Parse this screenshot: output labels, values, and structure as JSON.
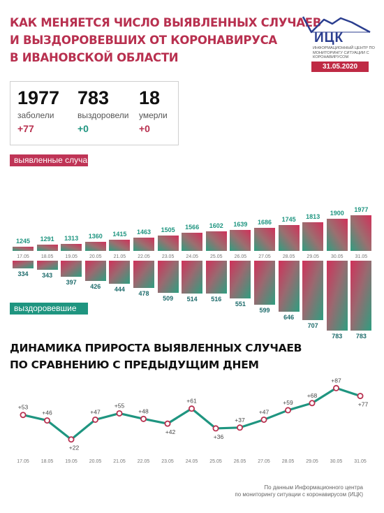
{
  "title": {
    "line1": "Как меняется число выявленных случаев",
    "line2": "и выздоровевших от коронавируса",
    "line3": "в Ивановской области"
  },
  "logo": {
    "name": "ИЦК",
    "subtitle": "Информационный центр по мониторингу ситуации с коронавирусом"
  },
  "date": "31.05.2020",
  "stats": [
    {
      "value": "1977",
      "label": "заболели",
      "delta": "+77"
    },
    {
      "value": "783",
      "label": "выздоровели",
      "delta": "+0"
    },
    {
      "value": "18",
      "label": "умерли",
      "delta": "+0"
    }
  ],
  "legend": {
    "cases": "выявленные случаи",
    "recovered": "выздоровевшие"
  },
  "chart2_title": {
    "line1": "Динамика прироста выявленных случаев",
    "line2": "по сравнению с предыдущим днем"
  },
  "footnote": {
    "line1": "По данным Информационного центра",
    "line2": "по мониторингу ситуации с коронавирусом (ИЦК)"
  },
  "colors": {
    "accent_pink": "#b8304f",
    "accent_teal": "#1f9580",
    "date_red": "#bf2a44",
    "logo_blue": "#2b3e8f"
  },
  "chart_data": [
    {
      "type": "bar",
      "categories": [
        "17.05",
        "18.05",
        "19.05",
        "20.05",
        "21.05",
        "22.05",
        "23.05",
        "24.05",
        "25.05",
        "26.05",
        "27.05",
        "28.05",
        "29.05",
        "30.05",
        "31.05"
      ],
      "series": [
        {
          "name": "выявленные случаи",
          "values": [
            1245,
            1291,
            1313,
            1360,
            1415,
            1463,
            1505,
            1566,
            1602,
            1639,
            1686,
            1745,
            1813,
            1900,
            1977
          ]
        },
        {
          "name": "выздоровевшие",
          "values": [
            334,
            343,
            397,
            426,
            444,
            478,
            509,
            514,
            516,
            551,
            599,
            646,
            707,
            783,
            783
          ]
        }
      ]
    },
    {
      "type": "line",
      "categories": [
        "17.05",
        "18.05",
        "19.05",
        "20.05",
        "21.05",
        "22.05",
        "23.05",
        "24.05",
        "25.05",
        "26.05",
        "27.05",
        "28.05",
        "29.05",
        "30.05",
        "31.05"
      ],
      "series": [
        {
          "values": [
            53,
            46,
            22,
            47,
            55,
            48,
            42,
            61,
            36,
            37,
            47,
            59,
            68,
            87,
            77
          ]
        }
      ],
      "labels": [
        "+53",
        "+46",
        "+22",
        "+47",
        "+55",
        "+48",
        "+42",
        "+61",
        "+36",
        "+37",
        "+47",
        "+59",
        "+68",
        "+87",
        "+77"
      ]
    }
  ]
}
